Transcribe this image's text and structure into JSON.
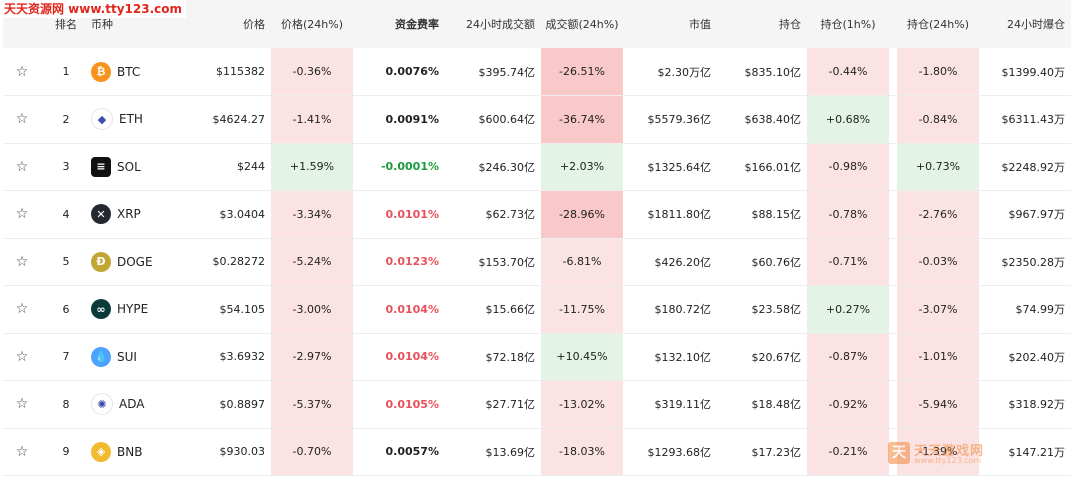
{
  "watermark_top": "天天资源网 www.tty123.com",
  "watermark_bottom": {
    "name": "天天游戏网",
    "url": "www.tty123.com"
  },
  "headers": {
    "rank": "排名",
    "coin": "币种",
    "price": "价格",
    "price_24h": "价格(24h%)",
    "funding": "资金费率",
    "vol_24h": "24小时成交额",
    "vol_change": "成交额(24h%)",
    "mcap": "市值",
    "oi": "持仓",
    "oi_1h": "持仓(1h%)",
    "oi_24h": "持仓(24h%)",
    "liq_24h": "24小时爆仓"
  },
  "rows": [
    {
      "rank": "1",
      "symbol": "BTC",
      "icon": "bitcoin-icon",
      "icon_color": "#f7931a",
      "icon_glyph": "₿",
      "price": "$115382",
      "price_24h": "-0.36%",
      "price_24h_tone": "neg",
      "funding": "0.0076%",
      "funding_tone": "dark",
      "vol_24h": "$395.74亿",
      "vol_change": "-26.51%",
      "vol_change_tone": "neg-strong",
      "mcap": "$2.30万亿",
      "oi": "$835.10亿",
      "oi_1h": "-0.44%",
      "oi_1h_tone": "neg",
      "oi_24h": "-1.80%",
      "oi_24h_tone": "neg",
      "liq_24h": "$1399.40万"
    },
    {
      "rank": "2",
      "symbol": "ETH",
      "icon": "ethereum-icon",
      "icon_color": "#ffffff",
      "icon_glyph": "◆",
      "price": "$4624.27",
      "price_24h": "-1.41%",
      "price_24h_tone": "neg",
      "funding": "0.0091%",
      "funding_tone": "dark",
      "vol_24h": "$600.64亿",
      "vol_change": "-36.74%",
      "vol_change_tone": "neg-strong",
      "mcap": "$5579.36亿",
      "oi": "$638.40亿",
      "oi_1h": "+0.68%",
      "oi_1h_tone": "pos",
      "oi_24h": "-0.84%",
      "oi_24h_tone": "neg",
      "liq_24h": "$6311.43万"
    },
    {
      "rank": "3",
      "symbol": "SOL",
      "icon": "solana-icon",
      "icon_color": "#111111",
      "icon_glyph": "≡",
      "price": "$244",
      "price_24h": "+1.59%",
      "price_24h_tone": "pos",
      "funding": "-0.0001%",
      "funding_tone": "green",
      "vol_24h": "$246.30亿",
      "vol_change": "+2.03%",
      "vol_change_tone": "pos",
      "mcap": "$1325.64亿",
      "oi": "$166.01亿",
      "oi_1h": "-0.98%",
      "oi_1h_tone": "neg",
      "oi_24h": "+0.73%",
      "oi_24h_tone": "pos",
      "liq_24h": "$2248.92万"
    },
    {
      "rank": "4",
      "symbol": "XRP",
      "icon": "xrp-icon",
      "icon_color": "#23292f",
      "icon_glyph": "✕",
      "price": "$3.0404",
      "price_24h": "-3.34%",
      "price_24h_tone": "neg",
      "funding": "0.0101%",
      "funding_tone": "red",
      "vol_24h": "$62.73亿",
      "vol_change": "-28.96%",
      "vol_change_tone": "neg-strong",
      "mcap": "$1811.80亿",
      "oi": "$88.15亿",
      "oi_1h": "-0.78%",
      "oi_1h_tone": "neg",
      "oi_24h": "-2.76%",
      "oi_24h_tone": "neg",
      "liq_24h": "$967.97万"
    },
    {
      "rank": "5",
      "symbol": "DOGE",
      "icon": "dogecoin-icon",
      "icon_color": "#c2a633",
      "icon_glyph": "Ð",
      "price": "$0.28272",
      "price_24h": "-5.24%",
      "price_24h_tone": "neg",
      "funding": "0.0123%",
      "funding_tone": "red",
      "vol_24h": "$153.70亿",
      "vol_change": "-6.81%",
      "vol_change_tone": "neg",
      "mcap": "$426.20亿",
      "oi": "$60.76亿",
      "oi_1h": "-0.71%",
      "oi_1h_tone": "neg",
      "oi_24h": "-0.03%",
      "oi_24h_tone": "neg",
      "liq_24h": "$2350.28万"
    },
    {
      "rank": "6",
      "symbol": "HYPE",
      "icon": "hyperliquid-icon",
      "icon_color": "#0a3b3a",
      "icon_glyph": "∞",
      "price": "$54.105",
      "price_24h": "-3.00%",
      "price_24h_tone": "neg",
      "funding": "0.0104%",
      "funding_tone": "red",
      "vol_24h": "$15.66亿",
      "vol_change": "-11.75%",
      "vol_change_tone": "neg",
      "mcap": "$180.72亿",
      "oi": "$23.58亿",
      "oi_1h": "+0.27%",
      "oi_1h_tone": "pos",
      "oi_24h": "-3.07%",
      "oi_24h_tone": "neg",
      "liq_24h": "$74.99万"
    },
    {
      "rank": "7",
      "symbol": "SUI",
      "icon": "sui-icon",
      "icon_color": "#4da2ff",
      "icon_glyph": "💧",
      "price": "$3.6932",
      "price_24h": "-2.97%",
      "price_24h_tone": "neg",
      "funding": "0.0104%",
      "funding_tone": "red",
      "vol_24h": "$72.18亿",
      "vol_change": "+10.45%",
      "vol_change_tone": "pos",
      "mcap": "$132.10亿",
      "oi": "$20.67亿",
      "oi_1h": "-0.87%",
      "oi_1h_tone": "neg",
      "oi_24h": "-1.01%",
      "oi_24h_tone": "neg",
      "liq_24h": "$202.40万"
    },
    {
      "rank": "8",
      "symbol": "ADA",
      "icon": "cardano-icon",
      "icon_color": "#ffffff",
      "icon_glyph": "✺",
      "price": "$0.8897",
      "price_24h": "-5.37%",
      "price_24h_tone": "neg",
      "funding": "0.0105%",
      "funding_tone": "red",
      "vol_24h": "$27.71亿",
      "vol_change": "-13.02%",
      "vol_change_tone": "neg",
      "mcap": "$319.11亿",
      "oi": "$18.48亿",
      "oi_1h": "-0.92%",
      "oi_1h_tone": "neg",
      "oi_24h": "-5.94%",
      "oi_24h_tone": "neg",
      "liq_24h": "$318.92万"
    },
    {
      "rank": "9",
      "symbol": "BNB",
      "icon": "bnb-icon",
      "icon_color": "#f3ba2f",
      "icon_glyph": "◈",
      "price": "$930.03",
      "price_24h": "-0.70%",
      "price_24h_tone": "neg",
      "funding": "0.0057%",
      "funding_tone": "dark",
      "vol_24h": "$13.69亿",
      "vol_change": "-18.03%",
      "vol_change_tone": "neg",
      "mcap": "$1293.68亿",
      "oi": "$17.23亿",
      "oi_1h": "-0.21%",
      "oi_1h_tone": "neg",
      "oi_24h": "-1.39%",
      "oi_24h_tone": "neg",
      "liq_24h": "$147.21万"
    }
  ]
}
